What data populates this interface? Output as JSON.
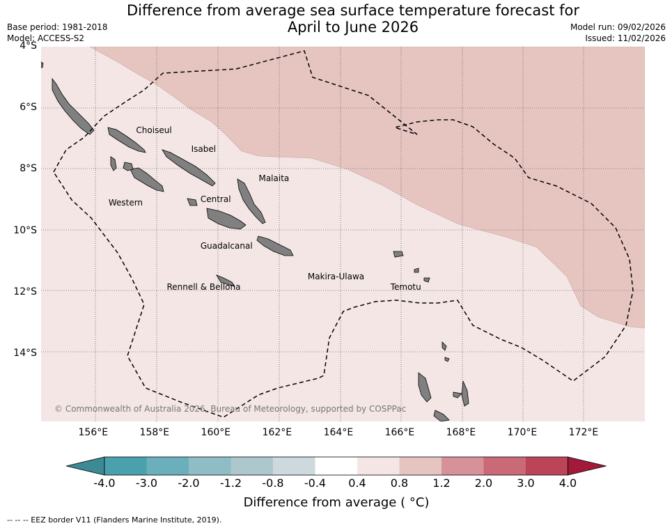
{
  "title": {
    "line1": "Difference from average sea surface temperature forecast for",
    "line2": "April to June 2026"
  },
  "meta_left": {
    "base_period": "Base period: 1981-2018",
    "model": "Model: ACCESS-S2"
  },
  "meta_right": {
    "model_run": "Model run: 09/02/2026",
    "issued": "Issued: 11/02/2026"
  },
  "map": {
    "lon_range": [
      154.3,
      174.0
    ],
    "lat_range": [
      -16.2,
      -4.0
    ],
    "lat_ticks": [
      {
        "value": -4,
        "label": "4°S"
      },
      {
        "value": -6,
        "label": "6°S"
      },
      {
        "value": -8,
        "label": "8°S"
      },
      {
        "value": -10,
        "label": "10°S"
      },
      {
        "value": -12,
        "label": "12°S"
      },
      {
        "value": -14,
        "label": "14°S"
      }
    ],
    "lon_ticks": [
      {
        "value": 156,
        "label": "156°E"
      },
      {
        "value": 158,
        "label": "158°E"
      },
      {
        "value": 160,
        "label": "160°E"
      },
      {
        "value": 162,
        "label": "162°E"
      },
      {
        "value": 164,
        "label": "164°E"
      },
      {
        "value": 166,
        "label": "166°E"
      },
      {
        "value": 168,
        "label": "168°E"
      },
      {
        "value": 170,
        "label": "170°E"
      },
      {
        "value": 172,
        "label": "172°E"
      }
    ],
    "base_anomaly_band": "0.4 to 0.8",
    "northeast_anomaly_band": "0.8 to 1.2",
    "colors": {
      "band_04_08": "#f3e6e5",
      "band_08_12": "#e6c5c1",
      "land": "#808080",
      "eez": "#000000"
    },
    "places": [
      {
        "name": "Choiseul",
        "lon": 157.4,
        "lat": -6.75
      },
      {
        "name": "Isabel",
        "lon": 159.2,
        "lat": -7.35
      },
      {
        "name": "Malaita",
        "lon": 161.4,
        "lat": -8.3
      },
      {
        "name": "Western",
        "lon": 156.5,
        "lat": -9.1
      },
      {
        "name": "Central",
        "lon": 159.5,
        "lat": -9.0
      },
      {
        "name": "Guadalcanal",
        "lon": 159.5,
        "lat": -10.5
      },
      {
        "name": "Makira-Ulawa",
        "lon": 163.0,
        "lat": -11.5
      },
      {
        "name": "Rennell & Bellona",
        "lon": 158.4,
        "lat": -11.85
      },
      {
        "name": "Temotu",
        "lon": 165.7,
        "lat": -11.85
      }
    ],
    "copyright": "© Commonwealth of Australia 2026, Bureau of Meteorology, supported by COSPPac"
  },
  "colorbar": {
    "title": "Difference from average ( °C)",
    "low_extend_color": "#3b8a95",
    "high_extend_color": "#a3193a",
    "bins": [
      {
        "range": "-4.0 to -3.0",
        "color": "#4aa1ae"
      },
      {
        "range": "-3.0 to -2.0",
        "color": "#6aafbb"
      },
      {
        "range": "-2.0 to -1.2",
        "color": "#8ebdc5"
      },
      {
        "range": "-1.2 to -0.8",
        "color": "#acc8cc"
      },
      {
        "range": "-0.8 to -0.4",
        "color": "#cdd9dd"
      },
      {
        "range": "-0.4 to 0.4",
        "color": "#ffffff"
      },
      {
        "range": "0.4 to 0.8",
        "color": "#f3e6e5"
      },
      {
        "range": "0.8 to 1.2",
        "color": "#e6c5c1"
      },
      {
        "range": "1.2 to 2.0",
        "color": "#d69199"
      },
      {
        "range": "2.0 to 3.0",
        "color": "#c96a76"
      },
      {
        "range": "3.0 to 4.0",
        "color": "#bc4457"
      }
    ],
    "labels": [
      "-4.0",
      "-3.0",
      "-2.0",
      "-1.2",
      "-0.8",
      "-0.4",
      "0.4",
      "0.8",
      "1.2",
      "2.0",
      "3.0",
      "4.0"
    ]
  },
  "footnote": "--  --  -- EEZ border V11 (Flanders Marine Institute, 2019)."
}
